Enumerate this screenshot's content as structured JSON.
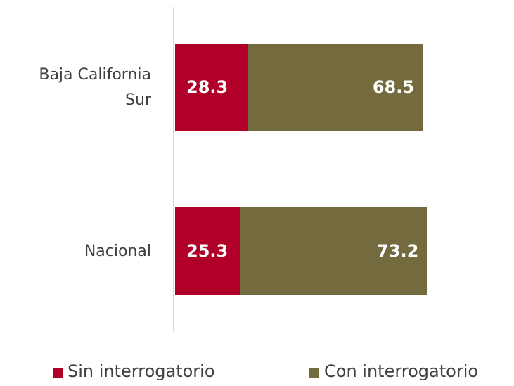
{
  "chart_data": {
    "type": "stacked-barh",
    "categories": [
      "Baja California Sur",
      "Nacional"
    ],
    "series": [
      {
        "name": "Sin interrogatorio",
        "color": "#b0002a",
        "values": [
          28.3,
          25.3
        ]
      },
      {
        "name": "Con interrogatorio",
        "color": "#736a3e",
        "values": [
          68.5,
          73.2
        ]
      }
    ]
  }
}
